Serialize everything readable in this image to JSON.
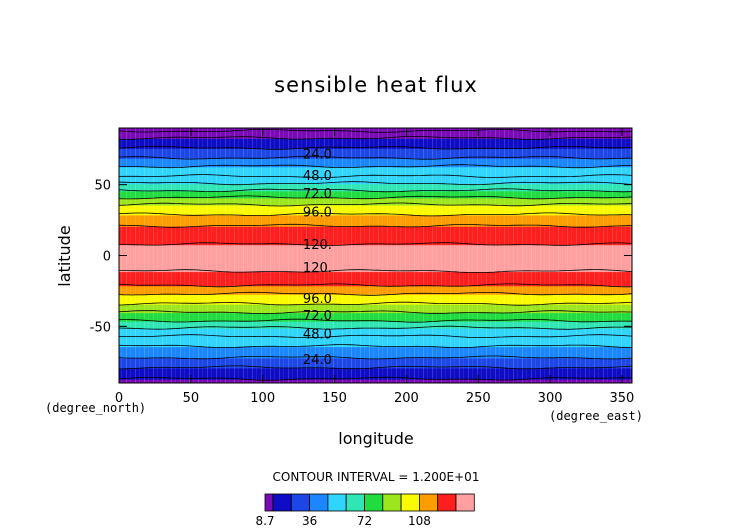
{
  "chart_data": {
    "type": "heatmap",
    "title": "sensible heat flux",
    "xlabel": "longitude",
    "ylabel": "latitude",
    "x_unit": "(degree_east)",
    "y_unit": "(degree_north)",
    "xlim": [
      0,
      357
    ],
    "ylim": [
      -90,
      90
    ],
    "x_ticks": [
      0,
      50,
      100,
      150,
      200,
      250,
      300,
      350
    ],
    "y_ticks": [
      -50,
      0,
      50
    ],
    "contour_interval_text": "CONTOUR INTERVAL = 1.200E+01",
    "contour_interval": 12,
    "min_value": 8.7,
    "contour_lines_lat": [
      88,
      83,
      76,
      69,
      63,
      56,
      51,
      46,
      41,
      36,
      29,
      21,
      8,
      -11,
      -21,
      -27,
      -34,
      -40,
      -46,
      -51,
      -57,
      -64,
      -72,
      -79,
      -87
    ],
    "band_values": [
      8.7,
      12,
      24,
      36,
      48,
      60,
      72,
      84,
      96,
      108,
      120,
      132
    ],
    "bands": [
      {
        "lat_from": -90,
        "lat_to": -87,
        "value": 8.7
      },
      {
        "lat_from": -87,
        "lat_to": -79,
        "value": 12
      },
      {
        "lat_from": -79,
        "lat_to": -72,
        "value": 24
      },
      {
        "lat_from": -72,
        "lat_to": -64,
        "value": 36
      },
      {
        "lat_from": -64,
        "lat_to": -57,
        "value": 48
      },
      {
        "lat_from": -57,
        "lat_to": -51,
        "value": 48
      },
      {
        "lat_from": -51,
        "lat_to": -46,
        "value": 60
      },
      {
        "lat_from": -46,
        "lat_to": -40,
        "value": 72
      },
      {
        "lat_from": -40,
        "lat_to": -34,
        "value": 84
      },
      {
        "lat_from": -34,
        "lat_to": -27,
        "value": 96
      },
      {
        "lat_from": -27,
        "lat_to": -21,
        "value": 108
      },
      {
        "lat_from": -21,
        "lat_to": -11,
        "value": 120
      },
      {
        "lat_from": -11,
        "lat_to": 8,
        "value": 132
      },
      {
        "lat_from": 8,
        "lat_to": 21,
        "value": 120
      },
      {
        "lat_from": 21,
        "lat_to": 29,
        "value": 108
      },
      {
        "lat_from": 29,
        "lat_to": 36,
        "value": 96
      },
      {
        "lat_from": 36,
        "lat_to": 41,
        "value": 84
      },
      {
        "lat_from": 41,
        "lat_to": 46,
        "value": 72
      },
      {
        "lat_from": 46,
        "lat_to": 51,
        "value": 60
      },
      {
        "lat_from": 51,
        "lat_to": 56,
        "value": 48
      },
      {
        "lat_from": 56,
        "lat_to": 63,
        "value": 48
      },
      {
        "lat_from": 63,
        "lat_to": 69,
        "value": 36
      },
      {
        "lat_from": 69,
        "lat_to": 76,
        "value": 24
      },
      {
        "lat_from": 76,
        "lat_to": 83,
        "value": 12
      },
      {
        "lat_from": 83,
        "lat_to": 88,
        "value": 8.7
      },
      {
        "lat_from": 88,
        "lat_to": 90,
        "value": 8.7
      }
    ],
    "contour_labels": [
      {
        "text": "24.0",
        "lon": 128,
        "lat": 72
      },
      {
        "text": "48.0",
        "lon": 128,
        "lat": 57
      },
      {
        "text": "72.0",
        "lon": 128,
        "lat": 44
      },
      {
        "text": "96.0",
        "lon": 128,
        "lat": 31
      },
      {
        "text": "120.",
        "lon": 128,
        "lat": 8
      },
      {
        "text": "120.",
        "lon": 128,
        "lat": -8
      },
      {
        "text": "96.0",
        "lon": 128,
        "lat": -30
      },
      {
        "text": "72.0",
        "lon": 128,
        "lat": -42
      },
      {
        "text": "48.0",
        "lon": 128,
        "lat": -55
      },
      {
        "text": "24.0",
        "lon": 128,
        "lat": -73
      }
    ],
    "colorbar": {
      "colors": [
        "#7a0ab6",
        "#0e0cc4",
        "#1c46e6",
        "#1a86ff",
        "#2fd4ff",
        "#2fe6b4",
        "#20dc40",
        "#9ce61e",
        "#fafa00",
        "#ff9c00",
        "#ff1e1e",
        "#ff9f9f"
      ],
      "tick_labels": [
        "8.7",
        "36",
        "72",
        "108"
      ],
      "tick_index": [
        0,
        3,
        6,
        9
      ]
    },
    "grid": false
  }
}
